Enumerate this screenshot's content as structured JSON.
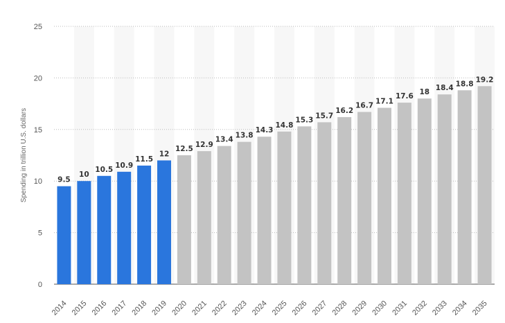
{
  "chart_data": {
    "type": "bar",
    "ylabel": "Spending in trillion U.S. dollars",
    "xlabel": "",
    "ylim": [
      0,
      25
    ],
    "yticks": [
      0,
      5,
      10,
      15,
      20,
      25
    ],
    "grid": true,
    "categories": [
      "2014",
      "2015",
      "2016",
      "2017",
      "2018",
      "2019",
      "2020",
      "2021",
      "2022",
      "2023",
      "2024",
      "2025",
      "2026",
      "2027",
      "2028",
      "2029",
      "2030",
      "2031",
      "2032",
      "2033",
      "2034",
      "2035"
    ],
    "values": [
      9.5,
      10,
      10.5,
      10.9,
      11.5,
      12,
      12.5,
      12.9,
      13.4,
      13.8,
      14.3,
      14.8,
      15.3,
      15.7,
      16.2,
      16.7,
      17.1,
      17.6,
      18,
      18.4,
      18.8,
      19.2
    ],
    "value_labels": [
      "9.5",
      "10",
      "10.5",
      "10.9",
      "11.5",
      "12",
      "12.5",
      "12.9",
      "13.4",
      "13.8",
      "14.3",
      "14.8",
      "15.3",
      "15.7",
      "16.2",
      "16.7",
      "17.1",
      "17.6",
      "18",
      "18.4",
      "18.8",
      "19.2"
    ],
    "actual_color": "#2a76dd",
    "forecast_color": "#c3c3c3",
    "forecast_start_index": 6
  }
}
